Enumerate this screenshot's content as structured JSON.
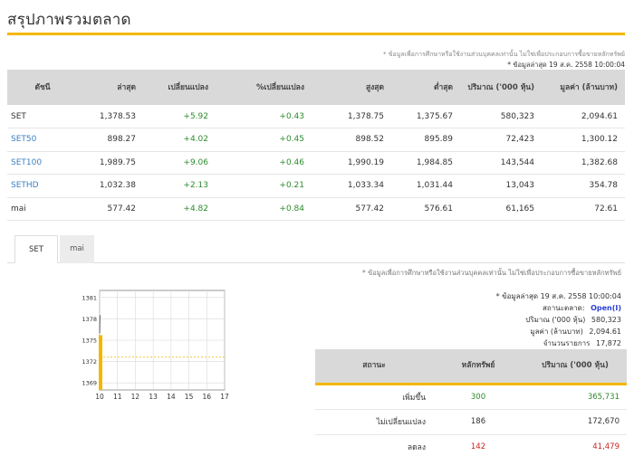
{
  "page": {
    "title": "สรุปภาพรวมตลาด"
  },
  "summary": {
    "note": "* ข้อมูลเพื่อการศึกษาหรือใช้งานส่วนบุคคลเท่านั้น ไม่ใช่เพื่อประกอบการซื้อขายหลักทรัพย์",
    "updated": "* ข้อมูลล่าสุด 19 ส.ค. 2558 10:00:04",
    "headers": [
      "ดัชนี",
      "ล่าสุด",
      "เปลี่ยนแปลง",
      "%เปลี่ยนแปลง",
      "สูงสุด",
      "ต่ำสุด",
      "ปริมาณ ('000 หุ้น)",
      "มูลค่า (ล้านบาท)"
    ],
    "rows": [
      {
        "index": "SET",
        "last": "1,378.53",
        "change": "+5.92",
        "pct": "+0.43",
        "high": "1,378.75",
        "low": "1,375.67",
        "volume": "580,323",
        "value": "2,094.61"
      },
      {
        "index": "SET50",
        "last": "898.27",
        "change": "+4.02",
        "pct": "+0.45",
        "high": "898.52",
        "low": "895.89",
        "volume": "72,423",
        "value": "1,300.12"
      },
      {
        "index": "SET100",
        "last": "1,989.75",
        "change": "+9.06",
        "pct": "+0.46",
        "high": "1,990.19",
        "low": "1,984.85",
        "volume": "143,544",
        "value": "1,382.68"
      },
      {
        "index": "SETHD",
        "last": "1,032.38",
        "change": "+2.13",
        "pct": "+0.21",
        "high": "1,033.34",
        "low": "1,031.44",
        "volume": "13,043",
        "value": "354.78"
      },
      {
        "index": "mai",
        "last": "577.42",
        "change": "+4.82",
        "pct": "+0.84",
        "high": "577.42",
        "low": "576.61",
        "volume": "61,165",
        "value": "72.61"
      }
    ]
  },
  "tabs": {
    "set": "SET",
    "mai": "mai"
  },
  "chart_data": {
    "type": "line",
    "title": "",
    "xlabel": "",
    "ylabel": "",
    "x_ticks": [
      "10",
      "11",
      "12",
      "13",
      "14",
      "15",
      "16",
      "17"
    ],
    "y_ticks": [
      "1381",
      "1378",
      "1375",
      "1372",
      "1369"
    ],
    "ylim": [
      1368,
      1382
    ],
    "xlim": [
      10,
      17
    ],
    "prev_close": 1372.61,
    "series": [
      {
        "values": [
          [
            10.0,
            1376.0
          ],
          [
            10.01,
            1377.2
          ],
          [
            10.02,
            1378.4
          ],
          [
            10.04,
            1378.5
          ]
        ]
      }
    ],
    "volume_bar": {
      "x": 10.0,
      "level": 0.55
    },
    "grid": true,
    "colors": {
      "line": "#555555",
      "prev_close": "#e6b800",
      "volume": "#f2b700",
      "grid": "#d8d8d8"
    }
  },
  "status": {
    "note": "* ข้อมูลเพื่อการศึกษาหรือใช้งานส่วนบุคคลเท่านั้น ไม่ใช่เพื่อประกอบการซื้อขายหลักทรัพย์",
    "updated": "* ข้อมูลล่าสุด 19 ส.ค. 2558 10:00:04",
    "market_status_label": "สถานะตลาด:",
    "market_status_value": "Open(I)",
    "volume_label": "ปริมาณ ('000 หุ้น)",
    "volume_value": "580,323",
    "value_label": "มูลค่า (ล้านบาท)",
    "value_value": "2,094.61",
    "deals_label": "จำนวนรายการ",
    "deals_value": "17,872",
    "headers": [
      "สถานะ",
      "หลักทรัพย์",
      "ปริมาณ ('000 หุ้น)"
    ],
    "rows": [
      {
        "label": "เพิ่มขึ้น",
        "count": "300",
        "volume": "365,731",
        "tone": "pos"
      },
      {
        "label": "ไม่เปลี่ยนแปลง",
        "count": "186",
        "volume": "172,670",
        "tone": "neutral"
      },
      {
        "label": "ลดลง",
        "count": "142",
        "volume": "41,479",
        "tone": "neg"
      }
    ]
  },
  "colors": {
    "accent": "#f2b700",
    "positive": "#2e8b2e",
    "negative": "#cc2222",
    "link": "#3a7fc3",
    "header_bg": "#d9d9d9"
  }
}
